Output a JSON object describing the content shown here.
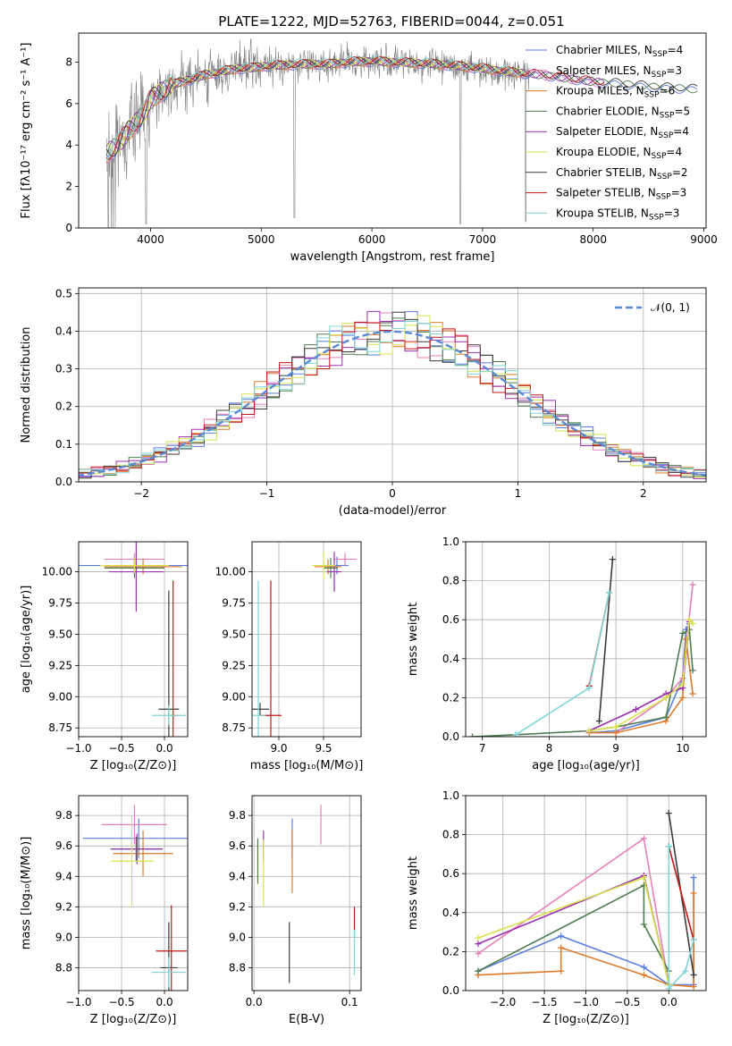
{
  "figure": {
    "title": "PLATE=1222, MJD=52763, FIBERID=0044, z=0.051"
  },
  "colors": {
    "Chabrier MILES": "#5b7fe0",
    "Salpeter MILES": "#e87fb8",
    "Kroupa MILES": "#e07b2a",
    "Chabrier ELODIE": "#4f7d4f",
    "Salpeter ELODIE": "#9a30b0",
    "Kroupa ELODIE": "#d8e24a",
    "Chabrier STELIB": "#3c3c3c",
    "Salpeter STELIB": "#c01818",
    "Kroupa STELIB": "#7fd6d6",
    "data": "#808080",
    "normal": "#5b8ad6"
  },
  "chart_data": [
    {
      "id": "spectrum",
      "type": "line",
      "title": "PLATE=1222, MJD=52763, FIBERID=0044, z=0.051",
      "xlabel": "wavelength [Angstrom, rest frame]",
      "ylabel": "Flux [fλ10⁻¹⁷ erg cm⁻² s⁻¹ A⁻¹]",
      "xlim": [
        3350,
        9020
      ],
      "ylim": [
        0,
        9.4
      ],
      "xticks": [
        4000,
        5000,
        6000,
        7000,
        8000,
        9000
      ],
      "yticks": [
        0,
        2,
        4,
        6,
        8
      ],
      "grid": false,
      "legend_position": "right",
      "legend": [
        {
          "label": "Chabrier MILES, N",
          "sub": "SSP",
          "tail": "=4",
          "series": "Chabrier MILES"
        },
        {
          "label": "Salpeter MILES, N",
          "sub": "SSP",
          "tail": "=3",
          "series": "Salpeter MILES"
        },
        {
          "label": "Kroupa MILES, N",
          "sub": "SSP",
          "tail": "=6",
          "series": "Kroupa MILES"
        },
        {
          "label": "Chabrier ELODIE, N",
          "sub": "SSP",
          "tail": "=5",
          "series": "Chabrier ELODIE"
        },
        {
          "label": "Salpeter ELODIE, N",
          "sub": "SSP",
          "tail": "=4",
          "series": "Salpeter ELODIE"
        },
        {
          "label": "Kroupa ELODIE, N",
          "sub": "SSP",
          "tail": "=4",
          "series": "Kroupa ELODIE"
        },
        {
          "label": "Chabrier STELIB, N",
          "sub": "SSP",
          "tail": "=2",
          "series": "Chabrier STELIB"
        },
        {
          "label": "Salpeter STELIB, N",
          "sub": "SSP",
          "tail": "=3",
          "series": "Salpeter STELIB"
        },
        {
          "label": "Kroupa STELIB, N",
          "sub": "SSP",
          "tail": "=3",
          "series": "Kroupa STELIB"
        }
      ],
      "continuum": {
        "x": [
          3600,
          3650,
          3700,
          3750,
          3800,
          3850,
          3900,
          3950,
          4000,
          4100,
          4200,
          4300,
          4400,
          4500,
          4600,
          4700,
          4800,
          4900,
          5000,
          5200,
          5400,
          5600,
          5800,
          6000,
          6200,
          6400,
          6600,
          6800,
          7000,
          7200,
          7400,
          7600,
          7800,
          8000,
          8200,
          8400,
          8600,
          8800,
          8950
        ],
        "y": [
          3.6,
          3.8,
          4.0,
          4.3,
          4.7,
          5.0,
          5.3,
          5.6,
          6.2,
          6.6,
          6.9,
          7.1,
          7.2,
          7.4,
          7.5,
          7.6,
          7.7,
          7.7,
          7.8,
          7.85,
          7.9,
          7.9,
          8.0,
          8.05,
          8.0,
          7.95,
          7.9,
          7.8,
          7.7,
          7.55,
          7.45,
          7.35,
          7.2,
          7.05,
          7.0,
          6.9,
          6.8,
          6.75,
          6.7
        ]
      },
      "data_x_range": [
        3600,
        7420
      ],
      "dips": [
        {
          "x": 3960,
          "y": 0.2
        },
        {
          "x": 5300,
          "y": 0.5
        },
        {
          "x": 6800,
          "y": 0.2
        },
        {
          "x": 7390,
          "y": 0.3
        }
      ]
    },
    {
      "id": "residuals",
      "type": "area",
      "xlabel": "(data-model)/error",
      "ylabel": "Normed distribution",
      "xlim": [
        -2.5,
        2.5
      ],
      "ylim": [
        0,
        0.515
      ],
      "xticks": [
        -2,
        -1,
        0,
        1,
        2
      ],
      "xticklabels": [
        "−2",
        "−1",
        "0",
        "1",
        "2"
      ],
      "yticks": [
        0.0,
        0.1,
        0.2,
        0.3,
        0.4,
        0.5
      ],
      "yticklabels": [
        "0.0",
        "0.1",
        "0.2",
        "0.3",
        "0.4",
        "0.5"
      ],
      "grid": true,
      "legend_position": "top-right",
      "legend": [
        {
          "label": "𝒩(0, 1)",
          "series": "normal"
        }
      ],
      "bin_width": 0.1,
      "series_names": [
        "Chabrier MILES",
        "Salpeter MILES",
        "Kroupa MILES",
        "Chabrier ELODIE",
        "Salpeter ELODIE",
        "Kroupa ELODIE",
        "Chabrier STELIB",
        "Salpeter STELIB",
        "Kroupa STELIB"
      ],
      "normal_mean": 0,
      "normal_sigma": 1
    },
    {
      "id": "age-vs-Z",
      "type": "scatter",
      "xlabel": "Z [log₁₀(Z/Z⊙)]",
      "ylabel": "age  [log₁₀(age/yr)]",
      "xlim": [
        -1.0,
        0.27
      ],
      "ylim": [
        8.68,
        10.24
      ],
      "xticks": [
        -1.0,
        -0.5,
        0.0
      ],
      "xticklabels": [
        "−1.0",
        "−0.5",
        "0.0"
      ],
      "yticks": [
        8.75,
        9.0,
        9.25,
        9.5,
        9.75,
        10.0
      ],
      "yticklabels": [
        "8.75",
        "9.00",
        "9.25",
        "9.50",
        "9.75",
        "10.00"
      ],
      "grid": true,
      "points": [
        {
          "series": "Chabrier MILES",
          "x": -0.35,
          "y": 10.05,
          "xerr": 0.65,
          "yerr": 0.07
        },
        {
          "series": "Salpeter MILES",
          "x": -0.35,
          "y": 10.1,
          "xerr": 0.35,
          "yerr": 0.05
        },
        {
          "series": "Kroupa MILES",
          "x": -0.25,
          "y": 10.04,
          "xerr": 0.45,
          "yerr": 0.06
        },
        {
          "series": "Chabrier ELODIE",
          "x": -0.35,
          "y": 10.03,
          "xerr": 0.35,
          "yerr": 0.08
        },
        {
          "series": "Salpeter ELODIE",
          "x": -0.33,
          "y": 10.0,
          "xerr": 0.32,
          "yerr": 0.32
        },
        {
          "series": "Kroupa ELODIE",
          "x": -0.35,
          "y": 10.05,
          "xerr": 0.4,
          "yerr": 0.06
        },
        {
          "series": "Chabrier STELIB",
          "x": 0.05,
          "y": 8.9,
          "xerr": 0.12,
          "yerr": 0.95
        },
        {
          "series": "Salpeter STELIB",
          "x": 0.1,
          "y": 8.85,
          "xerr": 0.05,
          "yerr": 1.08
        },
        {
          "series": "Kroupa STELIB",
          "x": 0.05,
          "y": 8.85,
          "xerr": 0.2,
          "yerr": 0.08
        }
      ]
    },
    {
      "id": "age-vs-mass",
      "type": "scatter",
      "xlabel": "mass [log₁₀(M/M⊙)]",
      "ylabel": "",
      "xlim": [
        8.7,
        9.92
      ],
      "ylim": [
        8.68,
        10.24
      ],
      "xticks": [
        9.0,
        9.5
      ],
      "xticklabels": [
        "9.0",
        "9.5"
      ],
      "yticks": [
        8.75,
        9.0,
        9.25,
        9.5,
        9.75,
        10.0
      ],
      "yticklabels": [
        "8.75",
        "9.00",
        "9.25",
        "9.50",
        "9.75",
        "10.00"
      ],
      "grid": true,
      "points": [
        {
          "series": "Chabrier MILES",
          "x": 9.65,
          "y": 10.05,
          "xerr": 0.13,
          "yerr": 0.07
        },
        {
          "series": "Salpeter MILES",
          "x": 9.74,
          "y": 10.1,
          "xerr": 0.13,
          "yerr": 0.05
        },
        {
          "series": "Kroupa MILES",
          "x": 9.55,
          "y": 10.04,
          "xerr": 0.15,
          "yerr": 0.06
        },
        {
          "series": "Chabrier ELODIE",
          "x": 9.58,
          "y": 10.03,
          "xerr": 0.08,
          "yerr": 0.08
        },
        {
          "series": "Salpeter ELODIE",
          "x": 9.62,
          "y": 10.0,
          "xerr": 0.08,
          "yerr": 0.16
        },
        {
          "series": "Kroupa ELODIE",
          "x": 9.5,
          "y": 10.05,
          "xerr": 0.13,
          "yerr": 0.11
        },
        {
          "series": "Chabrier STELIB",
          "x": 8.79,
          "y": 8.9,
          "xerr": 0.1,
          "yerr": 0.05
        },
        {
          "series": "Salpeter STELIB",
          "x": 8.91,
          "y": 8.85,
          "xerr": 0.12,
          "yerr": 1.08
        },
        {
          "series": "Kroupa STELIB",
          "x": 8.77,
          "y": 8.85,
          "xerr": 0.08,
          "yerr": 1.08
        }
      ]
    },
    {
      "id": "massweight-vs-age",
      "type": "line",
      "xlabel": "age  [log₁₀(age/yr)]",
      "ylabel": "mass weight",
      "xlim": [
        6.75,
        10.35
      ],
      "ylim": [
        0,
        1.0
      ],
      "xticks": [
        7,
        8,
        9,
        10
      ],
      "xticklabels": [
        "7",
        "8",
        "9",
        "10"
      ],
      "yticks": [
        0.0,
        0.2,
        0.4,
        0.6,
        0.8,
        1.0
      ],
      "yticklabels": [
        "0.0",
        "0.2",
        "0.4",
        "0.6",
        "0.8",
        "1.0"
      ],
      "grid": true,
      "series": [
        {
          "name": "Chabrier MILES",
          "x": [
            8.6,
            9.0,
            9.75,
            10.0,
            10.05,
            10.1
          ],
          "y": [
            0.02,
            0.03,
            0.1,
            0.3,
            0.55,
            0.58
          ]
        },
        {
          "name": "Salpeter MILES",
          "x": [
            9.0,
            9.75,
            10.0,
            10.15
          ],
          "y": [
            0.02,
            0.2,
            0.3,
            0.78
          ]
        },
        {
          "name": "Kroupa MILES",
          "x": [
            8.6,
            9.0,
            9.75,
            10.0,
            10.05,
            10.15
          ],
          "y": [
            0.02,
            0.02,
            0.08,
            0.2,
            0.5,
            0.22
          ]
        },
        {
          "name": "Chabrier ELODIE",
          "x": [
            6.85,
            7.5,
            8.6,
            9.0,
            9.75,
            10.0,
            10.1,
            10.15
          ],
          "y": [
            0.0,
            0.01,
            0.03,
            0.05,
            0.1,
            0.53,
            0.55,
            0.34
          ]
        },
        {
          "name": "Salpeter ELODIE",
          "x": [
            8.6,
            9.3,
            9.75,
            10.0,
            10.1
          ],
          "y": [
            0.03,
            0.14,
            0.22,
            0.25,
            0.59
          ]
        },
        {
          "name": "Kroupa ELODIE",
          "x": [
            8.6,
            9.0,
            9.75,
            10.0,
            10.1,
            10.15
          ],
          "y": [
            0.03,
            0.05,
            0.2,
            0.27,
            0.6,
            0.58
          ]
        },
        {
          "name": "Chabrier STELIB",
          "x": [
            8.75,
            8.95
          ],
          "y": [
            0.08,
            0.91
          ]
        },
        {
          "name": "Salpeter STELIB",
          "x": [
            8.6,
            8.9
          ],
          "y": [
            0.26,
            0.74
          ]
        },
        {
          "name": "Kroupa STELIB",
          "x": [
            7.5,
            8.6,
            8.9
          ],
          "y": [
            0.01,
            0.25,
            0.74
          ]
        }
      ]
    },
    {
      "id": "mass-vs-Z",
      "type": "scatter",
      "xlabel": "Z [log₁₀(Z/Z⊙)]",
      "ylabel": "mass [log₁₀(M/M⊙)]",
      "xlim": [
        -1.0,
        0.27
      ],
      "ylim": [
        8.65,
        9.93
      ],
      "xticks": [
        -1.0,
        -0.5,
        0.0
      ],
      "xticklabels": [
        "−1.0",
        "−0.5",
        "0.0"
      ],
      "yticks": [
        8.8,
        9.0,
        9.2,
        9.4,
        9.6,
        9.8
      ],
      "yticklabels": [
        "8.8",
        "9.0",
        "9.2",
        "9.4",
        "9.6",
        "9.8"
      ],
      "grid": true,
      "points": [
        {
          "series": "Chabrier MILES",
          "x": -0.3,
          "y": 9.65,
          "xerr": 0.65,
          "yerr": 0.13
        },
        {
          "series": "Salpeter MILES",
          "x": -0.35,
          "y": 9.74,
          "xerr": 0.38,
          "yerr": 0.13
        },
        {
          "series": "Kroupa MILES",
          "x": -0.25,
          "y": 9.55,
          "xerr": 0.35,
          "yerr": 0.15
        },
        {
          "series": "Chabrier ELODIE",
          "x": -0.33,
          "y": 9.58,
          "xerr": 0.3,
          "yerr": 0.08
        },
        {
          "series": "Salpeter ELODIE",
          "x": -0.32,
          "y": 9.58,
          "xerr": 0.3,
          "yerr": 0.1
        },
        {
          "series": "Kroupa ELODIE",
          "x": -0.38,
          "y": 9.5,
          "xerr": 0.25,
          "yerr": 0.3
        },
        {
          "series": "Chabrier STELIB",
          "x": 0.05,
          "y": 8.8,
          "xerr": 0.1,
          "yerr": 0.3
        },
        {
          "series": "Salpeter STELIB",
          "x": 0.08,
          "y": 8.91,
          "xerr": 0.18,
          "yerr": 0.3
        },
        {
          "series": "Kroupa STELIB",
          "x": 0.05,
          "y": 8.77,
          "xerr": 0.2,
          "yerr": 0.1
        }
      ]
    },
    {
      "id": "mass-vs-ebv",
      "type": "scatter",
      "xlabel": "E(B-V)",
      "ylabel": "",
      "xlim": [
        -0.002,
        0.112
      ],
      "ylim": [
        8.65,
        9.93
      ],
      "xticks": [
        0.0,
        0.1
      ],
      "xticklabels": [
        "0.0",
        "0.1"
      ],
      "yticks": [
        8.8,
        9.0,
        9.2,
        9.4,
        9.6,
        9.8
      ],
      "yticklabels": [
        "8.8",
        "9.0",
        "9.2",
        "9.4",
        "9.6",
        "9.8"
      ],
      "grid": true,
      "points": [
        {
          "series": "Chabrier MILES",
          "x": 0.04,
          "y": 9.65,
          "xerr": 0,
          "yerr": 0.13
        },
        {
          "series": "Salpeter MILES",
          "x": 0.07,
          "y": 9.74,
          "xerr": 0,
          "yerr": 0.13
        },
        {
          "series": "Kroupa MILES",
          "x": 0.04,
          "y": 9.5,
          "xerr": 0,
          "yerr": 0.21
        },
        {
          "series": "Chabrier ELODIE",
          "x": 0.004,
          "y": 9.5,
          "xerr": 0,
          "yerr": 0.15
        },
        {
          "series": "Salpeter ELODIE",
          "x": 0.01,
          "y": 9.6,
          "xerr": 0,
          "yerr": 0.1
        },
        {
          "series": "Kroupa ELODIE",
          "x": 0.01,
          "y": 9.42,
          "xerr": 0,
          "yerr": 0.22
        },
        {
          "series": "Chabrier STELIB",
          "x": 0.037,
          "y": 8.9,
          "xerr": 0,
          "yerr": 0.2
        },
        {
          "series": "Salpeter STELIB",
          "x": 0.105,
          "y": 9.1,
          "xerr": 0,
          "yerr": 0.1
        },
        {
          "series": "Kroupa STELIB",
          "x": 0.105,
          "y": 8.9,
          "xerr": 0,
          "yerr": 0.15
        }
      ]
    },
    {
      "id": "massweight-vs-Z",
      "type": "line",
      "xlabel": "Z [log₁₀(Z/Z⊙)]",
      "ylabel": "mass weight",
      "xlim": [
        -2.45,
        0.45
      ],
      "ylim": [
        0,
        1.0
      ],
      "xticks": [
        -2.0,
        -1.5,
        -1.0,
        -0.5,
        0.0
      ],
      "xticklabels": [
        "−2.0",
        "−1.5",
        "−1.0",
        "−0.5",
        "0.0"
      ],
      "yticks": [
        0.0,
        0.2,
        0.4,
        0.6,
        0.8,
        1.0
      ],
      "yticklabels": [
        "0.0",
        "0.2",
        "0.4",
        "0.6",
        "0.8",
        "1.0"
      ],
      "grid": true,
      "series": [
        {
          "name": "Chabrier MILES",
          "x": [
            -2.3,
            -1.3,
            -0.3,
            0.0,
            0.3,
            0.3
          ],
          "y": [
            0.1,
            0.28,
            0.12,
            0.03,
            0.03,
            0.58
          ]
        },
        {
          "name": "Salpeter MILES",
          "x": [
            -2.3,
            -0.3,
            0.0
          ],
          "y": [
            0.19,
            0.78,
            0.03
          ]
        },
        {
          "name": "Kroupa MILES",
          "x": [
            -2.3,
            -1.3,
            -1.3,
            -0.3,
            0.0,
            0.3,
            0.3
          ],
          "y": [
            0.08,
            0.1,
            0.22,
            0.08,
            0.03,
            0.02,
            0.5
          ]
        },
        {
          "name": "Chabrier ELODIE",
          "x": [
            -2.3,
            -0.3,
            -0.3,
            0.0,
            0.0
          ],
          "y": [
            0.1,
            0.54,
            0.34,
            0.1,
            0.03
          ]
        },
        {
          "name": "Salpeter ELODIE",
          "x": [
            -2.3,
            -0.3,
            0.0
          ],
          "y": [
            0.24,
            0.59,
            0.03
          ]
        },
        {
          "name": "Kroupa ELODIE",
          "x": [
            -2.3,
            -0.3,
            0.0
          ],
          "y": [
            0.27,
            0.58,
            0.03
          ]
        },
        {
          "name": "Chabrier STELIB",
          "x": [
            0.0,
            0.3
          ],
          "y": [
            0.91,
            0.08
          ]
        },
        {
          "name": "Salpeter STELIB",
          "x": [
            0.0,
            0.3
          ],
          "y": [
            0.74,
            0.26
          ]
        },
        {
          "name": "Kroupa STELIB",
          "x": [
            0.0,
            0.0,
            0.2,
            0.3
          ],
          "y": [
            0.74,
            0.01,
            0.1,
            0.26
          ]
        }
      ]
    }
  ]
}
